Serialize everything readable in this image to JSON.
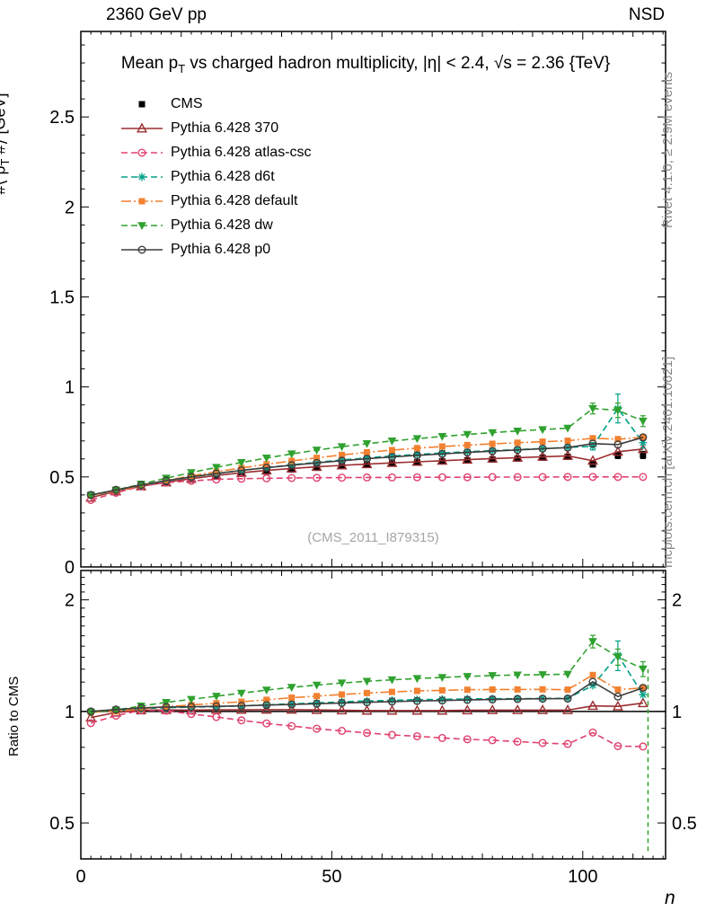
{
  "page": {
    "header": {
      "left": "2360 GeV pp",
      "right": "NSD"
    },
    "title": {
      "pre": "Mean p",
      "sub": "T",
      "post": " vs charged hadron multiplicity, |η| < 2.4, √s = 2.36 {TeV}"
    },
    "watermark": "(CMS_2011_I879315)",
    "side_notes": {
      "top": "Rivet 4.1.0, ≥ 2.9M events",
      "bottom": "mcplots.cern.ch [arXiv:2401.10621]"
    },
    "axes_labels": {
      "main_y": {
        "pre": "#⟨ p",
        "sub": "T",
        "post": " #⟩  [GeV]"
      },
      "ratio_y": "Ratio to CMS",
      "x": "n"
    }
  },
  "chart_data": {
    "type": "line",
    "title": "Mean pT vs charged hadron multiplicity, |η| < 2.4, √s = 2.36 TeV",
    "xlabel": "n",
    "ylabel_main": "⟨pT⟩ [GeV]",
    "ylabel_ratio": "Ratio to CMS",
    "x_axis": {
      "lim": [
        0,
        116.5
      ],
      "major_ticks": [
        0,
        50,
        100
      ]
    },
    "main_axis": {
      "lim": [
        0,
        2.975
      ],
      "major_ticks": [
        0,
        0.5,
        1,
        1.5,
        2,
        2.5
      ]
    },
    "ratio_axis": {
      "scale": "log",
      "lim": [
        0.4,
        2.4
      ],
      "major_ticks": [
        0.5,
        1,
        2
      ],
      "reference": 1
    },
    "x": [
      2,
      7,
      12,
      17,
      22,
      27,
      32,
      37,
      42,
      47,
      52,
      57,
      62,
      67,
      72,
      77,
      82,
      87,
      92,
      97,
      102,
      107,
      112
    ],
    "series": [
      {
        "label": "CMS",
        "color": "#000000",
        "marker": "square-filled",
        "line": "none",
        "is_reference": true,
        "values": [
          0.4,
          0.423,
          0.445,
          0.466,
          0.486,
          0.503,
          0.518,
          0.53,
          0.541,
          0.551,
          0.56,
          0.568,
          0.575,
          0.581,
          0.587,
          0.592,
          0.597,
          0.602,
          0.607,
          0.612,
          0.57,
          0.62,
          0.622
        ],
        "main_err": [
          {
            "x": 92,
            "e": 0.01
          },
          {
            "x": 97,
            "e": 0.012
          },
          {
            "x": 102,
            "e": 0.015
          },
          {
            "x": 107,
            "e": 0.018
          },
          {
            "x": 112,
            "e": 0.02
          }
        ],
        "ratio": null,
        "ratio_err": []
      },
      {
        "label": "Pythia 6.428 370",
        "color": "#9b2d30",
        "marker": "triangle-up-open",
        "line": "solid",
        "values": [
          0.385,
          0.42,
          0.448,
          0.47,
          0.49,
          0.508,
          0.523,
          0.536,
          0.547,
          0.556,
          0.564,
          0.571,
          0.578,
          0.584,
          0.59,
          0.596,
          0.602,
          0.607,
          0.612,
          0.617,
          0.59,
          0.64,
          0.655
        ],
        "main_err": [],
        "ratio": [
          0.963,
          0.993,
          1.007,
          1.009,
          1.008,
          1.01,
          1.01,
          1.011,
          1.011,
          1.009,
          1.007,
          1.005,
          1.005,
          1.005,
          1.005,
          1.007,
          1.008,
          1.008,
          1.008,
          1.008,
          1.035,
          1.032,
          1.053
        ],
        "ratio_err": []
      },
      {
        "label": "Pythia 6.428 atlas-csc",
        "color": "#e0426e",
        "marker": "circle-open",
        "line": "dashed",
        "values": [
          0.372,
          0.412,
          0.448,
          0.468,
          0.478,
          0.486,
          0.49,
          0.492,
          0.494,
          0.495,
          0.496,
          0.497,
          0.497,
          0.498,
          0.498,
          0.498,
          0.499,
          0.499,
          0.499,
          0.5,
          0.5,
          0.5,
          0.5
        ],
        "main_err": [],
        "ratio": [
          0.93,
          0.974,
          1.007,
          1.004,
          0.984,
          0.966,
          0.946,
          0.928,
          0.913,
          0.898,
          0.886,
          0.875,
          0.864,
          0.857,
          0.848,
          0.841,
          0.836,
          0.829,
          0.822,
          0.817,
          0.877,
          0.806,
          0.804
        ],
        "ratio_err": []
      },
      {
        "label": "Pythia 6.428 d6t",
        "color": "#00a086",
        "marker": "star",
        "line": "dashed",
        "values": [
          0.398,
          0.425,
          0.452,
          0.477,
          0.499,
          0.518,
          0.536,
          0.552,
          0.567,
          0.581,
          0.594,
          0.606,
          0.616,
          0.625,
          0.633,
          0.64,
          0.646,
          0.652,
          0.658,
          0.664,
          0.67,
          0.88,
          0.69
        ],
        "main_err": [
          {
            "x": 102,
            "e": 0.02
          },
          {
            "x": 107,
            "e": 0.08
          },
          {
            "x": 112,
            "e": 0.03
          }
        ],
        "ratio": [
          0.995,
          1.005,
          1.016,
          1.024,
          1.027,
          1.03,
          1.035,
          1.042,
          1.048,
          1.054,
          1.061,
          1.067,
          1.071,
          1.076,
          1.078,
          1.081,
          1.082,
          1.083,
          1.084,
          1.085,
          1.175,
          1.419,
          1.109
        ],
        "ratio_err": [
          {
            "x": 107,
            "e": 0.13
          }
        ]
      },
      {
        "label": "Pythia 6.428 default",
        "color": "#f28130",
        "marker": "square-filled",
        "line": "dashdot",
        "values": [
          0.398,
          0.423,
          0.452,
          0.48,
          0.506,
          0.529,
          0.55,
          0.57,
          0.589,
          0.606,
          0.622,
          0.637,
          0.649,
          0.66,
          0.669,
          0.677,
          0.684,
          0.69,
          0.696,
          0.701,
          0.715,
          0.71,
          0.72
        ],
        "main_err": [],
        "ratio": [
          0.995,
          1.0,
          1.016,
          1.03,
          1.041,
          1.052,
          1.062,
          1.075,
          1.089,
          1.1,
          1.111,
          1.121,
          1.129,
          1.136,
          1.14,
          1.144,
          1.146,
          1.146,
          1.147,
          1.145,
          1.254,
          1.145,
          1.158
        ],
        "ratio_err": []
      },
      {
        "label": "Pythia 6.428 dw",
        "color": "#2fa12f",
        "marker": "triangle-down-filled",
        "line": "dashed",
        "values": [
          0.398,
          0.427,
          0.46,
          0.493,
          0.524,
          0.553,
          0.58,
          0.605,
          0.628,
          0.649,
          0.668,
          0.685,
          0.7,
          0.713,
          0.725,
          0.736,
          0.746,
          0.755,
          0.763,
          0.771,
          0.88,
          0.87,
          0.81
        ],
        "main_err": [
          {
            "x": 102,
            "e": 0.03
          },
          {
            "x": 107,
            "e": 0.04
          },
          {
            "x": 112,
            "e": 0.03
          }
        ],
        "ratio": [
          0.995,
          1.009,
          1.034,
          1.058,
          1.078,
          1.099,
          1.12,
          1.142,
          1.161,
          1.178,
          1.193,
          1.206,
          1.217,
          1.227,
          1.235,
          1.243,
          1.25,
          1.254,
          1.257,
          1.26,
          1.544,
          1.403,
          1.302
        ],
        "ratio_err": [
          {
            "x": 102,
            "e": 0.06
          },
          {
            "x": 107,
            "e": 0.07
          },
          {
            "x": 112,
            "e": 0.06
          }
        ]
      },
      {
        "label": "Pythia 6.428 p0",
        "color": "#3d3d3d",
        "marker": "circle-open",
        "line": "solid",
        "values": [
          0.4,
          0.428,
          0.455,
          0.479,
          0.5,
          0.519,
          0.536,
          0.551,
          0.565,
          0.578,
          0.59,
          0.601,
          0.611,
          0.62,
          0.628,
          0.636,
          0.643,
          0.65,
          0.657,
          0.663,
          0.685,
          0.68,
          0.72
        ],
        "main_err": [],
        "ratio": [
          1.0,
          1.012,
          1.022,
          1.028,
          1.029,
          1.032,
          1.035,
          1.04,
          1.044,
          1.049,
          1.054,
          1.058,
          1.063,
          1.067,
          1.07,
          1.074,
          1.077,
          1.08,
          1.082,
          1.083,
          1.202,
          1.097,
          1.158
        ],
        "ratio_err": []
      }
    ],
    "annotations": [
      {
        "panel": "ratio",
        "type": "vline",
        "x": 113,
        "from": 0.42,
        "to": 1.3,
        "color": "#2fa12f",
        "style": "dashed"
      }
    ]
  }
}
